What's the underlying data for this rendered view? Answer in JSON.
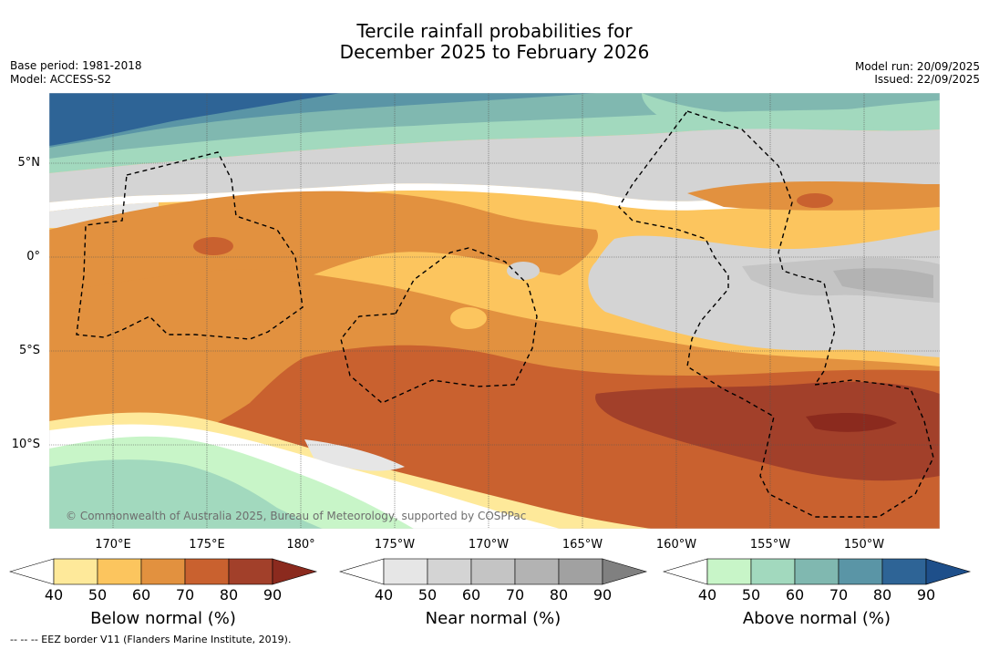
{
  "title": {
    "line1": "Tercile rainfall probabilities for",
    "line2": "December 2025 to February 2026"
  },
  "meta_left": {
    "base_period": "Base period: 1981-2018",
    "model": "Model: ACCESS-S2"
  },
  "meta_right": {
    "model_run": "Model run: 20/09/2025",
    "issued": "Issued: 22/09/2025"
  },
  "map": {
    "lat_labels": [
      "5°N",
      "0°",
      "5°S",
      "10°S"
    ],
    "lon_labels": [
      "170°E",
      "175°E",
      "180°",
      "175°W",
      "170°W",
      "165°W",
      "160°W",
      "155°W",
      "150°W"
    ],
    "copyright": "© Commonwealth of Australia 2025, Bureau of Meteorology, supported by COSPPac"
  },
  "colorbars": {
    "below": {
      "title": "Below normal (%)",
      "ticks": [
        "40",
        "50",
        "60",
        "70",
        "80",
        "90"
      ],
      "colors": [
        "#ffffff",
        "#fee99a",
        "#fcc55e",
        "#e2913f",
        "#c9612f",
        "#a2402a",
        "#8b2a1e"
      ]
    },
    "near": {
      "title": "Near normal (%)",
      "ticks": [
        "40",
        "50",
        "60",
        "70",
        "80",
        "90"
      ],
      "colors": [
        "#ffffff",
        "#e6e6e6",
        "#d4d4d4",
        "#c4c4c4",
        "#b3b3b3",
        "#a1a1a1",
        "#808080"
      ]
    },
    "above": {
      "title": "Above normal (%)",
      "ticks": [
        "40",
        "50",
        "60",
        "70",
        "80",
        "90"
      ],
      "colors": [
        "#ffffff",
        "#c8f5c8",
        "#a2d9be",
        "#80b8b0",
        "#5a95a6",
        "#2e6496",
        "#1e4f8a"
      ]
    }
  },
  "footnote": "-- -- -- EEZ border V11 (Flanders Marine Institute, 2019)."
}
